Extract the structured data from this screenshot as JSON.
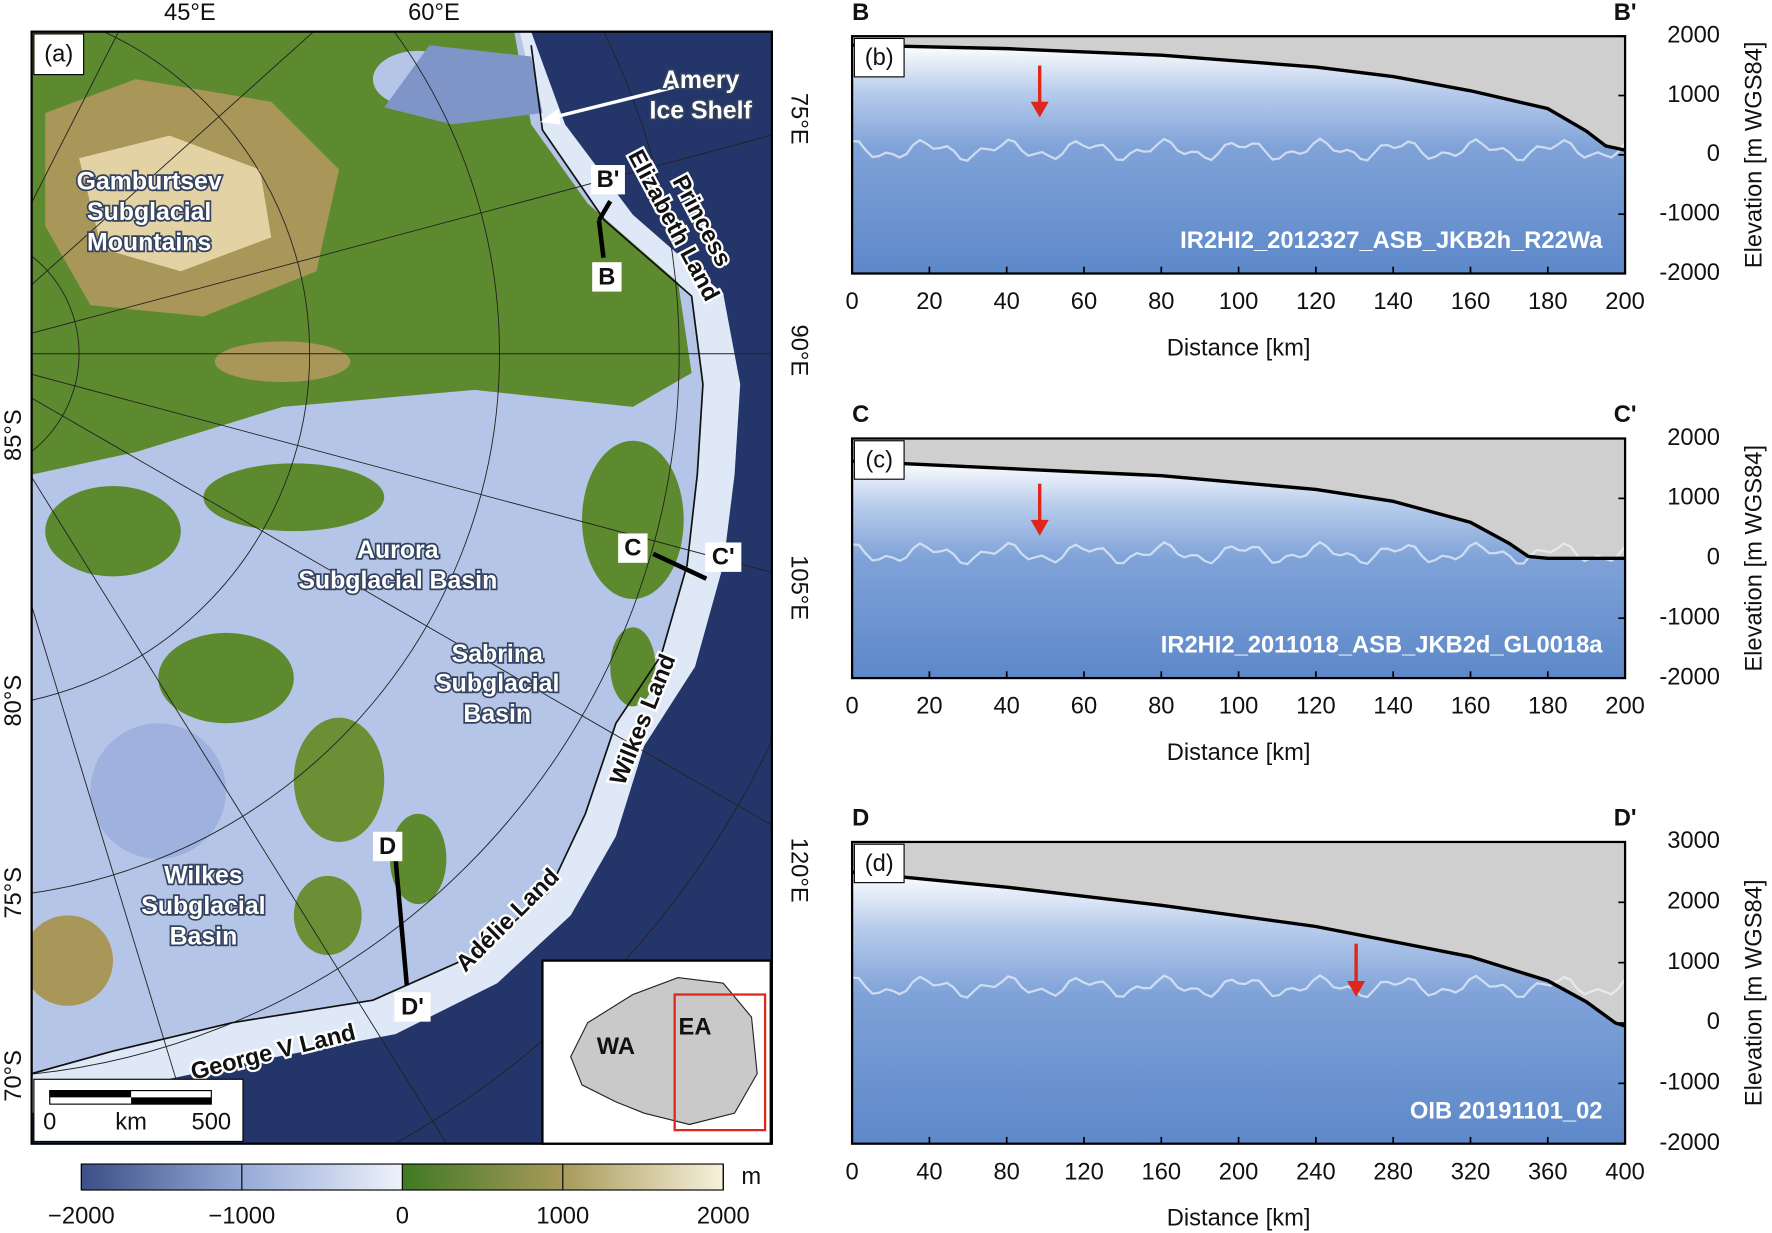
{
  "map": {
    "panel_label": "(a)",
    "longitude_labels": [
      "45°E",
      "60°E",
      "75°E",
      "90°E",
      "105°E",
      "120°E"
    ],
    "latitude_labels": [
      "85°S",
      "80°S",
      "75°S",
      "70°S"
    ],
    "regions": [
      {
        "lines": [
          "Gamburtsev",
          "Subglacial",
          "Mountains"
        ]
      },
      {
        "lines": [
          "Amery",
          "Ice Shelf"
        ]
      },
      {
        "lines": [
          "Princess",
          "Elizabeth Land"
        ]
      },
      {
        "lines": [
          "Aurora",
          "Subglacial Basin"
        ]
      },
      {
        "lines": [
          "Sabrina",
          "Subglacial",
          "Basin"
        ]
      },
      {
        "lines": [
          "Wilkes Land"
        ]
      },
      {
        "lines": [
          "Wilkes",
          "Subglacial",
          "Basin"
        ]
      },
      {
        "lines": [
          "Adélie Land"
        ]
      },
      {
        "lines": [
          "George V Land"
        ]
      }
    ],
    "profile_ends": [
      "B'",
      "B",
      "C",
      "C'",
      "D",
      "D'"
    ],
    "inset": {
      "labels": [
        "WA",
        "EA"
      ]
    },
    "scale_bar": {
      "labels": [
        "0",
        "km",
        "500"
      ]
    }
  },
  "colorbar": {
    "unit": "m",
    "lim": [
      -2000,
      2000
    ],
    "ticks": [
      {
        "value": -2000,
        "label": "−2000"
      },
      {
        "value": -1000,
        "label": "−1000"
      },
      0,
      1000,
      2000
    ]
  },
  "chart_data": [
    {
      "type": "line",
      "panel_label": "(b)",
      "start_label": "B",
      "end_label": "B'",
      "annotation": "IR2HI2_2012327_ASB_JKB2h_R22Wa",
      "xlabel": "Distance [km]",
      "ylabel": "Elevation [m WGS84]",
      "xlim": [
        0,
        200
      ],
      "xticks": [
        0,
        20,
        40,
        60,
        80,
        100,
        120,
        140,
        160,
        180,
        200
      ],
      "ylim": [
        -2000,
        2000
      ],
      "yticks": [
        -2000,
        -1000,
        0,
        1000,
        2000
      ],
      "color": "#000000",
      "x": [
        0,
        40,
        80,
        120,
        140,
        160,
        170,
        180,
        190,
        195,
        200
      ],
      "values": [
        1850,
        1790,
        1680,
        1480,
        1320,
        1080,
        930,
        780,
        400,
        150,
        80
      ]
    },
    {
      "type": "line",
      "panel_label": "(c)",
      "start_label": "C",
      "end_label": "C'",
      "annotation": "IR2HI2_2011018_ASB_JKB2d_GL0018a",
      "xlabel": "Distance [km]",
      "ylabel": "Elevation [m WGS84]",
      "xlim": [
        0,
        200
      ],
      "xticks": [
        0,
        20,
        40,
        60,
        80,
        100,
        120,
        140,
        160,
        180,
        200
      ],
      "ylim": [
        -2000,
        2000
      ],
      "yticks": [
        -2000,
        -1000,
        0,
        1000,
        2000
      ],
      "color": "#000000",
      "x": [
        0,
        40,
        80,
        120,
        140,
        160,
        170,
        175,
        180,
        200
      ],
      "values": [
        1620,
        1500,
        1380,
        1150,
        950,
        600,
        250,
        30,
        0,
        0
      ]
    },
    {
      "type": "line",
      "panel_label": "(d)",
      "start_label": "D",
      "end_label": "D'",
      "annotation": "OIB 20191101_02",
      "xlabel": "Distance [km]",
      "ylabel": "Elevation [m WGS84]",
      "xlim": [
        0,
        400
      ],
      "xticks": [
        0,
        40,
        80,
        120,
        160,
        200,
        240,
        280,
        320,
        360,
        400
      ],
      "ylim": [
        -2000,
        3000
      ],
      "yticks": [
        -2000,
        -1000,
        0,
        1000,
        2000,
        3000
      ],
      "color": "#000000",
      "x": [
        0,
        80,
        160,
        240,
        320,
        360,
        380,
        395,
        400
      ],
      "values": [
        2500,
        2250,
        1950,
        1600,
        1100,
        700,
        350,
        0,
        -50
      ]
    }
  ]
}
